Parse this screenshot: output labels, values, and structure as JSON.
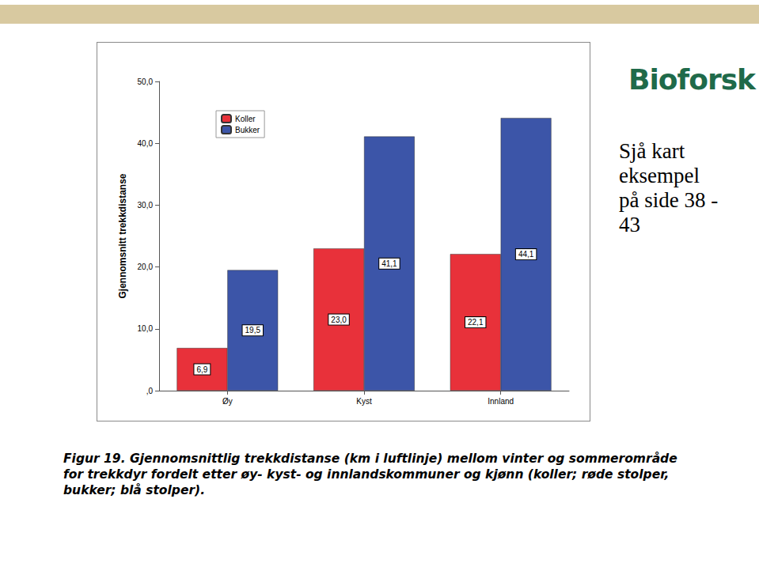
{
  "chart_data": {
    "type": "bar",
    "title": "Figur 19. Gjennomsnittlig trekkdistanse (km i luftlinje) mellom vinter og sommerområde for trekkdyr fordelt etter øy- kyst- og innlandskommuner og kjønn (koller; røde stolper, bukker; blå stolper).",
    "annotations": [
      "Sjå kart eksempel på side 38 - 43",
      "Bioforsk"
    ],
    "y_label": "Gjennomsnitt trekkdistanse",
    "categories": [
      "Øy",
      "Kyst",
      "Innland"
    ],
    "series": [
      {
        "name": "Koller",
        "color": "#e8313a",
        "values": [
          6.9,
          23.0,
          22.1
        ],
        "value_labels": [
          "6,9",
          "23,0",
          "22,1"
        ]
      },
      {
        "name": "Bukker",
        "color": "#3c55a8",
        "values": [
          19.5,
          41.1,
          44.1
        ],
        "value_labels": [
          "19,5",
          "41,1",
          "44,1"
        ]
      }
    ],
    "ylim": [
      0,
      50
    ],
    "yticks": [
      {
        "value": 0,
        "label": ",0"
      },
      {
        "value": 10,
        "label": "10,0"
      },
      {
        "value": 20,
        "label": "20,0"
      },
      {
        "value": 30,
        "label": "30,0"
      },
      {
        "value": 40,
        "label": "40,0"
      },
      {
        "value": 50,
        "label": "50,0"
      }
    ],
    "grid": false,
    "legend": "top-left",
    "data_labels": true
  }
}
